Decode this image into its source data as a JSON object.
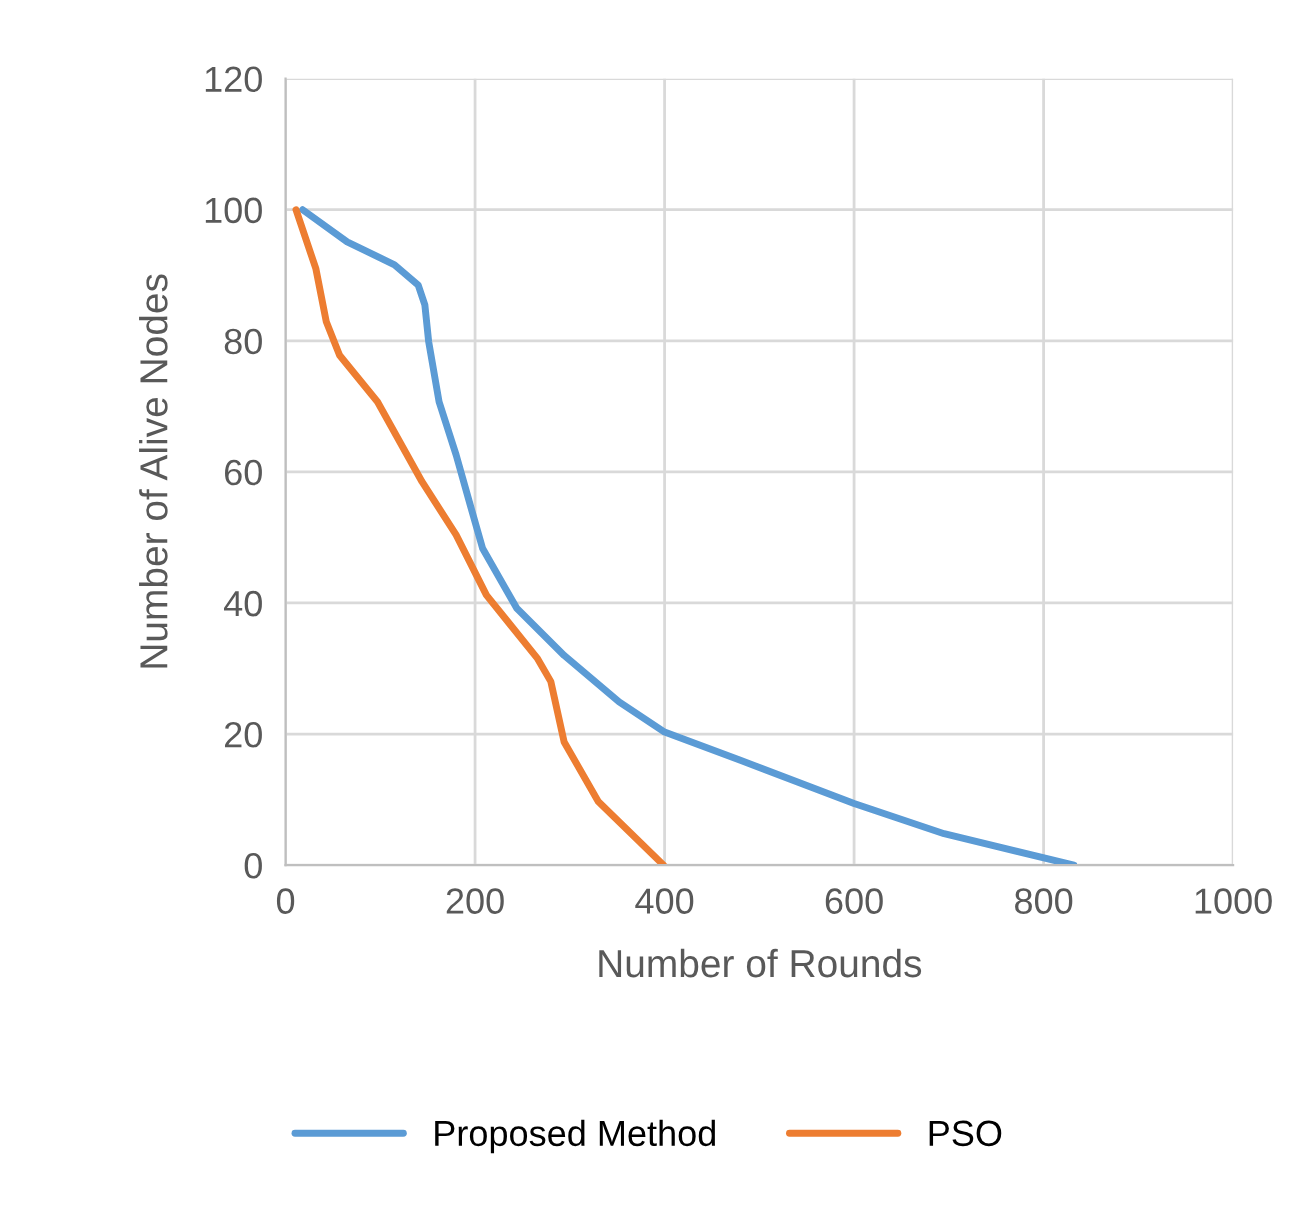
{
  "chart_data": {
    "type": "line",
    "xlabel": "Number of Rounds",
    "ylabel": "Number of Alive Nodes",
    "xlim": [
      0,
      1000
    ],
    "xticks": [
      0,
      200,
      400,
      600,
      800,
      1000
    ],
    "ylim": [
      0,
      120
    ],
    "yticks": [
      0,
      20,
      40,
      60,
      80,
      100,
      120
    ],
    "grid": true,
    "legend": "bottom",
    "marker": "none",
    "line_style": "solid",
    "series": [
      {
        "name": "Proposed Method",
        "color": "#5b9bd5",
        "x": [
          18,
          65,
          115,
          140,
          147,
          151,
          162,
          180,
          194,
          208,
          244,
          294,
          352,
          400,
          480,
          600,
          695,
          832
        ],
        "values": [
          100,
          95.1,
          91.6,
          88.5,
          85.5,
          79.9,
          70.7,
          62.6,
          55.4,
          48.3,
          39.2,
          32,
          24.9,
          20.3,
          16,
          9.4,
          4.8,
          0
        ]
      },
      {
        "name": "PSO",
        "color": "#ed7d31",
        "x": [
          11,
          32,
          43,
          57,
          97,
          144,
          180,
          212,
          266,
          280,
          294,
          330,
          399
        ],
        "values": [
          100,
          91,
          82.9,
          77.8,
          70.7,
          58.5,
          50.4,
          41.2,
          31.5,
          28,
          18.8,
          9.7,
          0
        ]
      }
    ]
  }
}
